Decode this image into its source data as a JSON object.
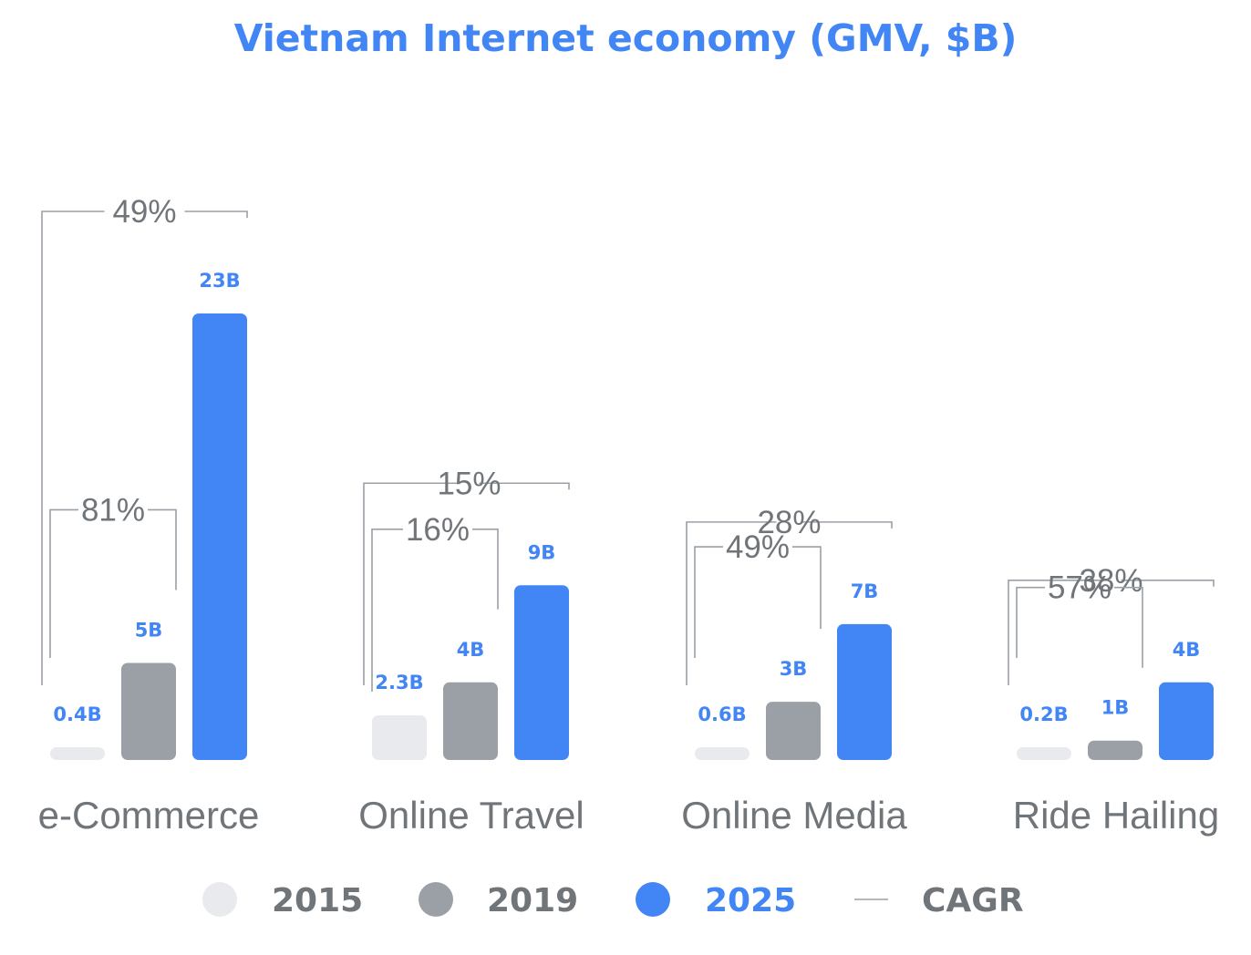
{
  "chart_data": {
    "type": "bar",
    "title": "Vietnam Internet economy (GMV, $B)",
    "xlabel": "",
    "ylabel": "",
    "ylim": [
      0,
      23
    ],
    "grid": false,
    "legend_placement": "bottom",
    "categories": [
      "e-Commerce",
      "Online Travel",
      "Online Media",
      "Ride Hailing"
    ],
    "series": [
      {
        "name": "2015",
        "color": "#e8eaed",
        "label_color": "#4285f4",
        "values": [
          0.4,
          2.3,
          0.6,
          0.2
        ],
        "labels": [
          "0.4B",
          "2.3B",
          "0.6B",
          "0.2B"
        ]
      },
      {
        "name": "2019",
        "color": "#9aa0a6",
        "label_color": "#4285f4",
        "values": [
          5,
          4,
          3,
          1
        ],
        "labels": [
          "5B",
          "4B",
          "3B",
          "1B"
        ]
      },
      {
        "name": "2025",
        "color": "#4285f4",
        "label_color": "#4285f4",
        "values": [
          23,
          9,
          7,
          4
        ],
        "labels": [
          "23B",
          "9B",
          "7B",
          "4B"
        ]
      }
    ],
    "cagr_2015_2019": [
      "81%",
      "16%",
      "49%",
      "57%"
    ],
    "cagr_2015_2025": [
      "49%",
      "15%",
      "28%",
      "38%"
    ],
    "legend": [
      {
        "label": "2015",
        "marker": "circle",
        "color": "#e8eaed",
        "text_color": "#70757a"
      },
      {
        "label": "2019",
        "marker": "circle",
        "color": "#9aa0a6",
        "text_color": "#70757a"
      },
      {
        "label": "2025",
        "marker": "circle",
        "color": "#4285f4",
        "text_color": "#4285f4"
      },
      {
        "label": "CAGR",
        "marker": "line",
        "color": "#9aa0a6",
        "text_color": "#70757a"
      }
    ]
  }
}
